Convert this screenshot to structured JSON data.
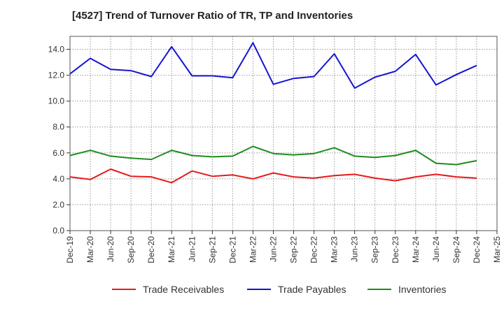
{
  "chart_data": {
    "type": "line",
    "title": "[4527]  Trend of Turnover Ratio of TR, TP and Inventories",
    "xlabel": "",
    "ylabel": "",
    "ylim": [
      0,
      15
    ],
    "yticks": [
      "0.0",
      "2.0",
      "4.0",
      "6.0",
      "8.0",
      "10.0",
      "12.0",
      "14.0"
    ],
    "x": [
      "Dec-19",
      "Mar-20",
      "Jun-20",
      "Sep-20",
      "Dec-20",
      "Mar-21",
      "Jun-21",
      "Sep-21",
      "Dec-21",
      "Mar-22",
      "Jun-22",
      "Sep-22",
      "Dec-22",
      "Mar-23",
      "Jun-23",
      "Sep-23",
      "Dec-23",
      "Mar-24",
      "Jun-24",
      "Sep-24",
      "Dec-24",
      "Mar-25"
    ],
    "grid": true,
    "legend_position": "bottom",
    "series": [
      {
        "name": "Trade Receivables",
        "color": "#e8191a",
        "values": [
          4.15,
          3.95,
          4.75,
          4.2,
          4.15,
          3.7,
          4.6,
          4.2,
          4.3,
          4.0,
          4.45,
          4.15,
          4.05,
          4.25,
          4.35,
          4.05,
          3.85,
          4.15,
          4.35,
          4.15,
          4.05,
          null
        ]
      },
      {
        "name": "Trade Payables",
        "color": "#1414d2",
        "values": [
          12.1,
          13.3,
          12.45,
          12.35,
          11.9,
          14.2,
          11.95,
          11.95,
          11.8,
          14.5,
          11.3,
          11.75,
          11.9,
          13.65,
          11.0,
          11.85,
          12.3,
          13.6,
          11.25,
          12.05,
          12.75,
          null
        ]
      },
      {
        "name": "Inventories",
        "color": "#1f8c1f",
        "values": [
          5.8,
          6.2,
          5.75,
          5.6,
          5.5,
          6.2,
          5.8,
          5.7,
          5.75,
          6.5,
          5.95,
          5.85,
          5.95,
          6.4,
          5.75,
          5.65,
          5.8,
          6.2,
          5.2,
          5.1,
          5.4,
          null
        ]
      }
    ]
  }
}
